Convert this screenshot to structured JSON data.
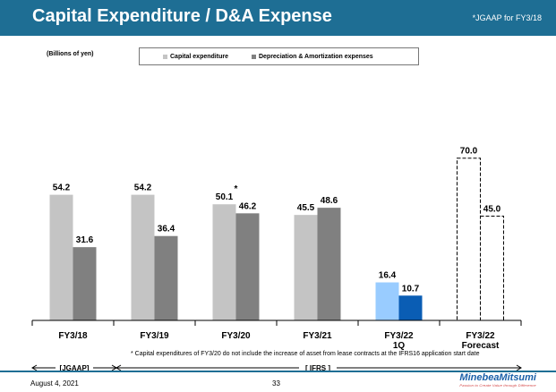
{
  "header": {
    "title": "Capital Expenditure / D&A Expense",
    "note": "*JGAAP for FY3/18"
  },
  "unit_label": "(Billions of yen)",
  "legend": {
    "capex_label": "Capital expenditure",
    "da_label": "Depreciation & Amortization expenses"
  },
  "colors": {
    "header_bg": "#1e6e94",
    "capex": "#c4c4c4",
    "da": "#808080",
    "capex_q1": "#99ccff",
    "da_q1": "#0a5db4"
  },
  "chart_data": {
    "type": "bar",
    "categories": [
      "FY3/18",
      "FY3/19",
      "FY3/20",
      "FY3/21",
      "FY3/22\n1Q",
      "FY3/22\nForecast"
    ],
    "series": [
      {
        "name": "Capital expenditure",
        "values": [
          54.2,
          54.2,
          50.1,
          45.5,
          16.4,
          70.0
        ]
      },
      {
        "name": "Depreciation & Amortization expenses",
        "values": [
          31.6,
          36.4,
          46.2,
          48.6,
          10.7,
          45.0
        ]
      }
    ],
    "value_labels": {
      "capex": [
        "54.2",
        "54.2",
        "50.1",
        "45.5",
        "16.4",
        "70.0"
      ],
      "da": [
        "31.6",
        "36.4",
        "46.2",
        "48.6",
        "10.7",
        "45.0"
      ]
    },
    "annotation": "*",
    "forecast_index": 5,
    "highlight_index": 4,
    "ylim": [
      0,
      70
    ],
    "segments": [
      {
        "label": "[JGAAP]"
      },
      {
        "label": "[ IFRS ]"
      }
    ]
  },
  "footnote": "* Capital expenditures of FY3/20 do not include the increase of asset from lease contracts at the IFRS16 application start date",
  "footer": {
    "date": "August 4, 2021",
    "page": "33",
    "logo": "MinebeaMitsumi",
    "tagline": "Passion to Create Value through Difference"
  }
}
